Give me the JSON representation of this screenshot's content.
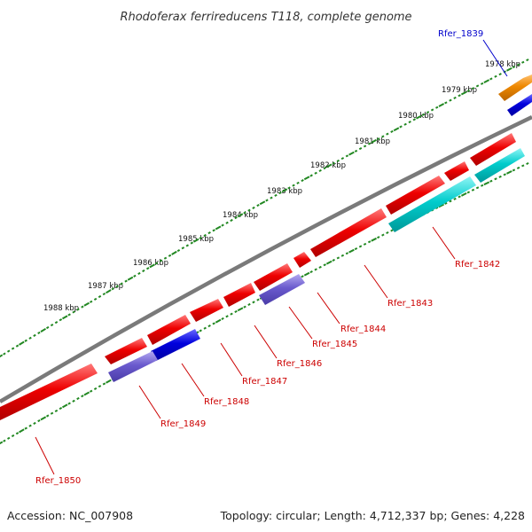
{
  "title": "Rhodoferax ferrireducens T118, complete genome",
  "footer": {
    "accession": "Accession: NC_007908",
    "stats": "Topology: circular; Length: 4,712,337 bp; Genes: 4,228"
  },
  "kbp_ticks": [
    "1978 kbp",
    "1979 kbp",
    "1980 kbp",
    "1981 kbp",
    "1982 kbp",
    "1983 kbp",
    "1984 kbp",
    "1985 kbp",
    "1986 kbp",
    "1987 kbp",
    "1988 kbp"
  ],
  "gene_labels": [
    "Rfer_1839",
    "Rfer_1842",
    "Rfer_1843",
    "Rfer_1844",
    "Rfer_1845",
    "Rfer_1846",
    "Rfer_1847",
    "Rfer_1848",
    "Rfer_1849",
    "Rfer_1850"
  ],
  "colors": {
    "red": "#ee0000",
    "cyan": "#00cccc",
    "blue": "#0000dd",
    "purple": "#6a5acd",
    "orange": "#ee8800",
    "dots": "#228822",
    "backbone": "#777777",
    "label_red": "#cc0000",
    "label_blue": "#0000cc"
  }
}
